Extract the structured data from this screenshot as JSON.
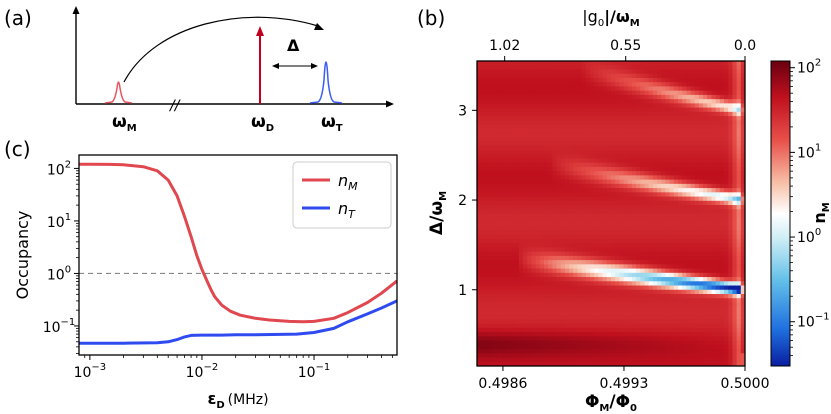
{
  "figure": {
    "panel_labels": [
      "(a)",
      "(b)",
      "(c)"
    ]
  },
  "chart_data": [
    {
      "type": "diagram",
      "panel": "(a)",
      "peaks": [
        {
          "name": "ω_M",
          "label_main": "ω",
          "label_sub": "M",
          "color": "#e8555e",
          "shape": "lorentzian"
        },
        {
          "name": "ω_D",
          "label_main": "ω",
          "label_sub": "D",
          "color": "#c0001e",
          "shape": "arrow"
        },
        {
          "name": "ω_T",
          "label_main": "ω",
          "label_sub": "T",
          "color": "#3a5cf5",
          "shape": "lorentzian"
        }
      ],
      "detuning_label": "Δ",
      "axis_break": "//"
    },
    {
      "type": "line",
      "panel": "(c)",
      "xscale": "log",
      "yscale": "log",
      "xlabel_main": "ε",
      "xlabel_sub": "D",
      "xlabel_unit": "(MHz)",
      "ylabel": "Occupancy",
      "xlim": [
        0.0008,
        0.55
      ],
      "ylim": [
        0.028,
        180
      ],
      "xticks": [
        {
          "value": 0.001,
          "label": "10",
          "exp": "−3"
        },
        {
          "value": 0.01,
          "label": "10",
          "exp": "−2"
        },
        {
          "value": 0.1,
          "label": "10",
          "exp": "−1"
        }
      ],
      "yticks": [
        {
          "value": 0.1,
          "label": "10",
          "exp": "−1"
        },
        {
          "value": 1,
          "label": "10",
          "exp": "0"
        },
        {
          "value": 10,
          "label": "10",
          "exp": "1"
        },
        {
          "value": 100,
          "label": "10",
          "exp": "2"
        }
      ],
      "reference_line": {
        "y": 1,
        "style": "dashed",
        "color": "#888888"
      },
      "legend": {
        "placement": "top-right"
      },
      "series": [
        {
          "name": "n_M",
          "label_main": "n",
          "label_sub": "M",
          "color": "#e0474f",
          "x": [
            0.0008,
            0.001,
            0.0015,
            0.002,
            0.003,
            0.004,
            0.005,
            0.006,
            0.007,
            0.008,
            0.009,
            0.01,
            0.011,
            0.012,
            0.013,
            0.015,
            0.018,
            0.022,
            0.03,
            0.04,
            0.06,
            0.08,
            0.1,
            0.15,
            0.2,
            0.3,
            0.4,
            0.55
          ],
          "values": [
            120,
            120,
            119,
            117,
            108,
            90,
            60,
            30,
            12,
            5,
            2.2,
            1.2,
            0.75,
            0.5,
            0.36,
            0.25,
            0.19,
            0.16,
            0.14,
            0.13,
            0.122,
            0.12,
            0.122,
            0.14,
            0.18,
            0.28,
            0.42,
            0.72
          ]
        },
        {
          "name": "n_T",
          "label_main": "n",
          "label_sub": "T",
          "color": "#2f4bf0",
          "x": [
            0.0008,
            0.001,
            0.002,
            0.004,
            0.005,
            0.006,
            0.007,
            0.008,
            0.01,
            0.015,
            0.02,
            0.03,
            0.05,
            0.07,
            0.1,
            0.15,
            0.2,
            0.3,
            0.4,
            0.55
          ],
          "values": [
            0.047,
            0.047,
            0.047,
            0.048,
            0.05,
            0.055,
            0.062,
            0.066,
            0.067,
            0.067,
            0.068,
            0.068,
            0.069,
            0.07,
            0.075,
            0.09,
            0.12,
            0.17,
            0.22,
            0.3
          ]
        }
      ]
    },
    {
      "type": "heatmap",
      "panel": "(b)",
      "xlabel_main": "Φ",
      "xlabel_sub": "M",
      "xlabel_den_main": "Φ",
      "xlabel_den_sub": "0",
      "ylabel_main": "Δ",
      "ylabel_den_main": "ω",
      "ylabel_den_sub": "M",
      "top_xlabel_main": "|g",
      "top_xlabel_sub": "0",
      "top_xlabel_rest": "|/ω",
      "top_xlabel_sub2": "M",
      "xlim": [
        0.49845,
        0.5
      ],
      "ylim": [
        0.15,
        3.55
      ],
      "xticks": [
        0.4986,
        0.4993,
        0.5
      ],
      "xtick_labels": [
        "0.4986",
        "0.4993",
        "0.5000"
      ],
      "yticks": [
        1,
        2,
        3
      ],
      "ytick_labels": [
        "1",
        "2",
        "3"
      ],
      "top_xticks": [
        0.49861,
        0.49931,
        0.5
      ],
      "top_xtick_labels": [
        "1.02",
        "0.55",
        "0.0"
      ],
      "colorbar": {
        "label_main": "n",
        "label_sub": "M",
        "scale": "log",
        "range": [
          0.03,
          120
        ],
        "ticks": [
          {
            "value": 0.1,
            "label": "10",
            "exp": "−1"
          },
          {
            "value": 1,
            "label": "10",
            "exp": "0"
          },
          {
            "value": 10,
            "label": "10",
            "exp": "1"
          },
          {
            "value": 100,
            "label": "10",
            "exp": "2"
          }
        ]
      },
      "resonances": [
        {
          "delta_center": 1.0,
          "min_occupancy": 0.03
        },
        {
          "delta_center": 2.0,
          "min_occupancy": 0.6
        },
        {
          "delta_center": 3.0,
          "min_occupancy": 1.2
        }
      ]
    }
  ]
}
